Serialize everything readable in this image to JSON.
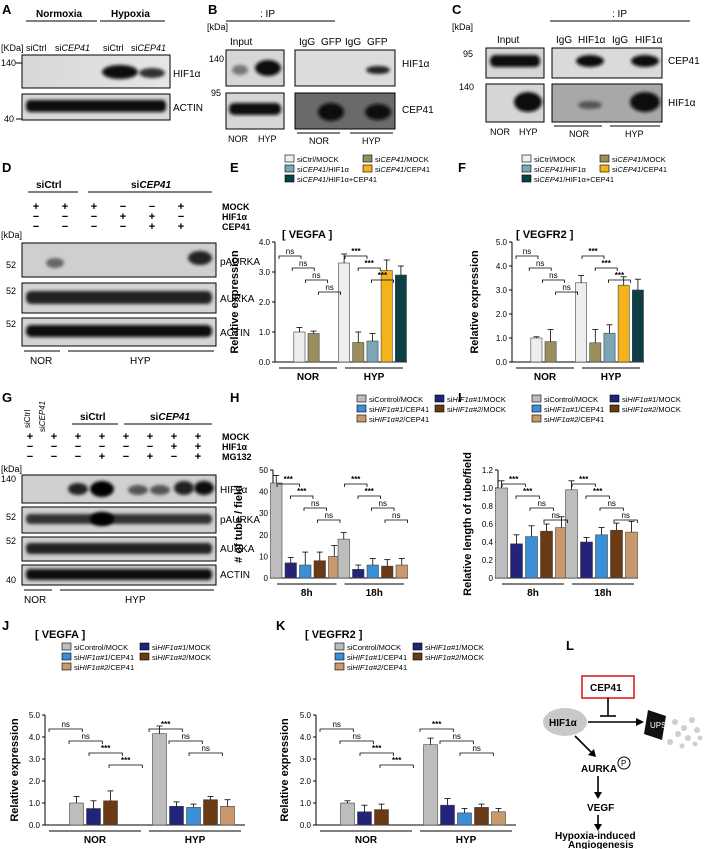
{
  "colors": {
    "mock": "#eeeeee",
    "cep41mock": "#9a8f5c",
    "hif1a": "#7ba6b8",
    "cep41": "#f4b21b",
    "combo": "#0e3f47",
    "control": "#bdbdbd",
    "h1mock": "#23237a",
    "h1cep": "#3b8fd6",
    "h2mock": "#6a3a14",
    "h2cep": "#c9986b",
    "red": "#e02020"
  },
  "panels": {
    "A": {
      "letter": "A",
      "cond_nor": "Normoxia",
      "cond_hyp": "Hypoxia",
      "kda": "[KDa]",
      "lanes": [
        "siCtrl",
        "si",
        "CEP41",
        "siCtrl",
        "si",
        "CEP41"
      ],
      "mw": [
        "140",
        "40"
      ],
      "bands": [
        "HIF1α",
        "ACTIN"
      ]
    },
    "B": {
      "letter": "B",
      "kda": "[kDa]",
      "input": "Input",
      "ip": ": IP",
      "lanes_ip": [
        "IgG",
        "GFP",
        "IgG",
        "GFP"
      ],
      "mw": [
        "140",
        "95"
      ],
      "bands": [
        "HIF1α",
        "CEP41"
      ],
      "lanes_in": [
        "NOR",
        "HYP"
      ],
      "groups": [
        "NOR",
        "HYP"
      ]
    },
    "C": {
      "letter": "C",
      "kda": "[kDa]",
      "input": "Input",
      "ip": ": IP",
      "lanes_ip": [
        "IgG",
        "HIF1α",
        "IgG",
        "HIF1α"
      ],
      "mw": [
        "95",
        "140"
      ],
      "bands": [
        "CEP41",
        "HIF1α"
      ],
      "lanes_in": [
        "NOR",
        "HYP"
      ],
      "groups": [
        "NOR",
        "HYP"
      ]
    },
    "D": {
      "letter": "D",
      "siCtrl": "siCtrl",
      "si": "si",
      "cep41": "CEP41",
      "kda": "[kDa]",
      "rows": [
        "MOCK",
        "HIF1α",
        "CEP41"
      ],
      "signs": [
        [
          "+",
          "+",
          "+",
          "−",
          "−",
          "+"
        ],
        [
          "−",
          "−",
          "−",
          "+",
          "+",
          "−"
        ],
        [
          "−",
          "−",
          "−",
          "−",
          "+",
          "+"
        ]
      ],
      "mw": [
        "52",
        "52",
        "52"
      ],
      "bands": [
        "pAURKA",
        "AURKA",
        "ACTIN"
      ],
      "groups": [
        "NOR",
        "HYP"
      ]
    },
    "G": {
      "letter": "G",
      "top_lanes": [
        "siCtrl",
        "si",
        "CEP41"
      ],
      "siCtrl": "siCtrl",
      "si": "si",
      "cep41": "CEP41",
      "kda": "[kDa]",
      "rows": [
        "MOCK",
        "HIF1α",
        "MG132"
      ],
      "signs": [
        [
          "+",
          "+",
          "+",
          "+",
          "+",
          "+",
          "+",
          "+"
        ],
        [
          "−",
          "−",
          "−",
          "−",
          "−",
          "−",
          "+",
          "+"
        ],
        [
          "−",
          "−",
          "−",
          "+",
          "−",
          "+",
          "−",
          "+"
        ]
      ],
      "mw": [
        "140",
        "52",
        "52",
        "40"
      ],
      "bands": [
        "HIF1α",
        "pAURKA",
        "AURKA",
        "ACTIN"
      ],
      "groups": [
        "NOR",
        "HYP"
      ]
    },
    "L": {
      "letter": "L",
      "cep41": "CEP41",
      "hif": "HIF1α",
      "ups": "UPS",
      "aurka": "AURKA",
      "p": "P",
      "vegf": "VEGF",
      "out1": "Hypoxia-induced",
      "out2": "Angiogenesis"
    }
  },
  "legends": {
    "EF": [
      {
        "color": "#eeeeee",
        "text": [
          "siCtrl/MOCK"
        ]
      },
      {
        "color": "#9a8f5c",
        "text": [
          "si",
          "CEP41",
          "/MOCK"
        ]
      },
      {
        "color": "#7ba6b8",
        "text": [
          "si",
          "CEP41",
          "/HIF1α"
        ]
      },
      {
        "color": "#f4b21b",
        "text": [
          "si",
          "CEP41",
          "/CEP41"
        ]
      },
      {
        "color": "#0e3f47",
        "text": [
          "si",
          "CEP41",
          "/HIF1α+CEP41"
        ]
      }
    ],
    "HK": [
      {
        "color": "#bdbdbd",
        "text": [
          "siControl/MOCK"
        ]
      },
      {
        "color": "#23237a",
        "text": [
          "si",
          "HIF1α#1",
          "/MOCK"
        ]
      },
      {
        "color": "#3b8fd6",
        "text": [
          "si",
          "HIF1α#1",
          "/CEP41"
        ]
      },
      {
        "color": "#6a3a14",
        "text": [
          "si",
          "HIF1α#2",
          "/MOCK"
        ]
      },
      {
        "color": "#c9986b",
        "text": [
          "si",
          "HIF1α#2",
          "/CEP41"
        ]
      }
    ]
  },
  "chart_data": [
    {
      "panel": "E",
      "type": "bar",
      "gene": "VEGFA",
      "title": "[ VEGFA ]",
      "ylabel": "Relative expression",
      "ylim": [
        0,
        4
      ],
      "yticks": [
        "0.0",
        "1.0",
        "2.0",
        "3.0",
        "4.0"
      ],
      "groups": [
        "NOR",
        "HYP"
      ],
      "series": [
        {
          "name": "siCtrl/MOCK",
          "values": [
            1.0,
            3.3
          ],
          "errors": [
            0.15,
            0.3
          ]
        },
        {
          "name": "siCEP41/MOCK",
          "values": [
            0.95,
            0.65
          ],
          "errors": [
            0.08,
            0.35
          ]
        },
        {
          "name": "siCEP41/HIF1α",
          "values": [
            null,
            0.7
          ],
          "errors": [
            null,
            0.25
          ]
        },
        {
          "name": "siCEP41/HIF1α+CEP41",
          "values": [
            null,
            3.05
          ],
          "errors": [
            null,
            0.35
          ]
        },
        {
          "name": "siCEP41/CEP41",
          "values": [
            null,
            2.9
          ],
          "errors": [
            null,
            0.3
          ]
        }
      ],
      "sig": [
        "ns",
        "ns",
        "ns",
        "ns",
        "***",
        "***",
        "***"
      ]
    },
    {
      "panel": "F",
      "type": "bar",
      "gene": "VEGFR2",
      "title": "[ VEGFR2 ]",
      "ylabel": "Relative expression",
      "ylim": [
        0,
        5
      ],
      "yticks": [
        "0.0",
        "1.0",
        "2.0",
        "3.0",
        "4.0",
        "5.0"
      ],
      "groups": [
        "NOR",
        "HYP"
      ],
      "series": [
        {
          "name": "siCtrl/MOCK",
          "values": [
            1.0,
            3.3
          ],
          "errors": [
            0.05,
            0.3
          ]
        },
        {
          "name": "siCEP41/MOCK",
          "values": [
            0.85,
            0.8
          ],
          "errors": [
            0.5,
            0.55
          ]
        },
        {
          "name": "siCEP41/HIF1α",
          "values": [
            null,
            1.2
          ],
          "errors": [
            null,
            0.35
          ]
        },
        {
          "name": "siCEP41/HIF1α+CEP41",
          "values": [
            null,
            3.2
          ],
          "errors": [
            null,
            0.35
          ]
        },
        {
          "name": "siCEP41/CEP41",
          "values": [
            null,
            3.0
          ],
          "errors": [
            null,
            0.45
          ]
        }
      ],
      "sig": [
        "ns",
        "ns",
        "ns",
        "ns",
        "***",
        "***",
        "***"
      ]
    },
    {
      "panel": "H",
      "type": "bar",
      "ylabel": "# of tube / field",
      "ylim": [
        0,
        50
      ],
      "yticks": [
        "0",
        "10",
        "20",
        "30",
        "40",
        "50"
      ],
      "groups": [
        "8h",
        "18h"
      ],
      "series": [
        {
          "name": "siControl/MOCK",
          "values": [
            44,
            18
          ],
          "errors": [
            3.5,
            3
          ]
        },
        {
          "name": "siHIF1α#1/MOCK",
          "values": [
            7,
            4
          ],
          "errors": [
            2.5,
            2
          ]
        },
        {
          "name": "siHIF1α#1/CEP41",
          "values": [
            6,
            6
          ],
          "errors": [
            6,
            3
          ]
        },
        {
          "name": "siHIF1α#2/MOCK",
          "values": [
            8,
            5.5
          ],
          "errors": [
            4,
            3
          ]
        },
        {
          "name": "siHIF1α#2/CEP41",
          "values": [
            10,
            6
          ],
          "errors": [
            5,
            3
          ]
        }
      ],
      "sig": [
        "***",
        "***",
        "ns",
        "ns",
        "***",
        "***",
        "ns",
        "ns"
      ]
    },
    {
      "panel": "I",
      "type": "bar",
      "ylabel": "Relative length of tube/field",
      "ylim": [
        0,
        1.2
      ],
      "yticks": [
        "0",
        "0.2",
        "0.4",
        "0.6",
        "0.8",
        "1.0",
        "1.2"
      ],
      "groups": [
        "8h",
        "18h"
      ],
      "series": [
        {
          "name": "siControl/MOCK",
          "values": [
            1.0,
            0.98
          ],
          "errors": [
            0.08,
            0.1
          ]
        },
        {
          "name": "siHIF1α#1/MOCK",
          "values": [
            0.38,
            0.4
          ],
          "errors": [
            0.1,
            0.05
          ]
        },
        {
          "name": "siHIF1α#1/CEP41",
          "values": [
            0.46,
            0.48
          ],
          "errors": [
            0.12,
            0.08
          ]
        },
        {
          "name": "siHIF1α#2/MOCK",
          "values": [
            0.52,
            0.53
          ],
          "errors": [
            0.08,
            0.08
          ]
        },
        {
          "name": "siHIF1α#2/CEP41",
          "values": [
            0.56,
            0.51
          ],
          "errors": [
            0.12,
            0.12
          ]
        }
      ],
      "sig": [
        "***",
        "***",
        "ns",
        "ns",
        "***",
        "***",
        "ns",
        "ns"
      ]
    },
    {
      "panel": "J",
      "type": "bar",
      "gene": "VEGFA",
      "title": "[ VEGFA ]",
      "ylabel": "Relative expression",
      "ylim": [
        0,
        5
      ],
      "yticks": [
        "0.0",
        "1.0",
        "2.0",
        "3.0",
        "4.0",
        "5.0"
      ],
      "groups": [
        "NOR",
        "HYP"
      ],
      "series": [
        {
          "name": "siControl/MOCK",
          "values": [
            1.0,
            4.15
          ],
          "errors": [
            0.3,
            0.35
          ]
        },
        {
          "name": "siHIF1α#1/MOCK",
          "values": [
            0.75,
            0.85
          ],
          "errors": [
            0.35,
            0.2
          ]
        },
        {
          "name": "siHIF1α#1/CEP41",
          "values": [
            null,
            0.8
          ],
          "errors": [
            null,
            0.15
          ]
        },
        {
          "name": "siHIF1α#2/MOCK",
          "values": [
            1.1,
            1.15
          ],
          "errors": [
            0.45,
            0.15
          ]
        },
        {
          "name": "siHIF1α#2/CEP41",
          "values": [
            null,
            0.85
          ],
          "errors": [
            null,
            0.3
          ]
        }
      ],
      "sig": [
        "ns",
        "ns",
        "***",
        "***",
        "***",
        "ns",
        "ns"
      ]
    },
    {
      "panel": "K",
      "type": "bar",
      "gene": "VEGFR2",
      "title": "[ VEGFR2 ]",
      "ylabel": "Relative expression",
      "ylim": [
        0,
        5
      ],
      "yticks": [
        "0.0",
        "1.0",
        "2.0",
        "3.0",
        "4.0",
        "5.0"
      ],
      "groups": [
        "NOR",
        "HYP"
      ],
      "series": [
        {
          "name": "siControl/MOCK",
          "values": [
            1.0,
            3.65
          ],
          "errors": [
            0.1,
            0.3
          ]
        },
        {
          "name": "siHIF1α#1/MOCK",
          "values": [
            0.6,
            0.9
          ],
          "errors": [
            0.3,
            0.3
          ]
        },
        {
          "name": "siHIF1α#1/CEP41",
          "values": [
            null,
            0.55
          ],
          "errors": [
            null,
            0.2
          ]
        },
        {
          "name": "siHIF1α#2/MOCK",
          "values": [
            0.7,
            0.8
          ],
          "errors": [
            0.25,
            0.15
          ]
        },
        {
          "name": "siHIF1α#2/CEP41",
          "values": [
            null,
            0.6
          ],
          "errors": [
            null,
            0.15
          ]
        }
      ],
      "sig": [
        "ns",
        "ns",
        "***",
        "***",
        "***",
        "ns",
        "ns"
      ]
    }
  ]
}
